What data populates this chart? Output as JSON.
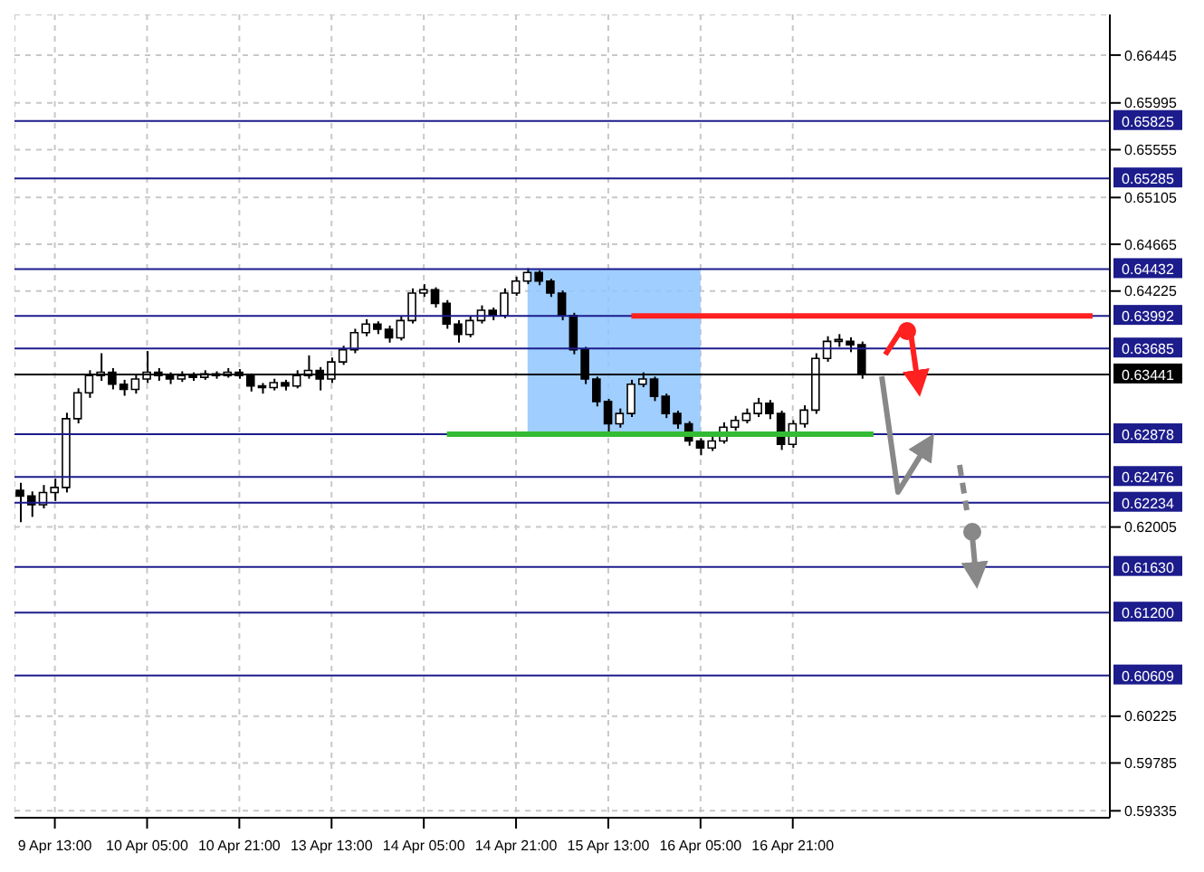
{
  "chart_data": {
    "type": "candlestick",
    "categories": [
      null,
      null,
      null,
      "9 Apr 13:00",
      null,
      null,
      null,
      null,
      null,
      null,
      null,
      "10 Apr 05:00",
      null,
      null,
      null,
      null,
      null,
      null,
      null,
      "10 Apr 21:00",
      null,
      null,
      null,
      null,
      null,
      null,
      null,
      "13 Apr 13:00",
      null,
      null,
      null,
      null,
      null,
      null,
      null,
      "14 Apr 05:00",
      null,
      null,
      null,
      null,
      null,
      null,
      null,
      "14 Apr 21:00",
      null,
      null,
      null,
      null,
      null,
      null,
      null,
      "15 Apr 13:00",
      null,
      null,
      null,
      null,
      null,
      null,
      null,
      "16 Apr 05:00",
      null,
      null,
      null,
      null,
      null,
      null,
      null,
      "16 Apr 21:00",
      null,
      null,
      null,
      null,
      null,
      null,
      null,
      null,
      null,
      null,
      null,
      null,
      null,
      null,
      null,
      null,
      null,
      null,
      null,
      null,
      null,
      null,
      null,
      null,
      null,
      null,
      null
    ],
    "ohlc": [
      [
        0.6235,
        0.6242,
        0.6205,
        0.62296
      ],
      [
        0.62296,
        0.6234,
        0.621,
        0.62215
      ],
      [
        0.62215,
        0.624,
        0.6218,
        0.62329
      ],
      [
        0.62329,
        0.6246,
        0.6225,
        0.62377
      ],
      [
        0.62377,
        0.6308,
        0.6233,
        0.63024
      ],
      [
        0.63024,
        0.6331,
        0.6298,
        0.63267
      ],
      [
        0.63267,
        0.6348,
        0.6322,
        0.63429
      ],
      [
        0.63429,
        0.6364,
        0.6338,
        0.63461
      ],
      [
        0.63461,
        0.635,
        0.633,
        0.63348
      ],
      [
        0.63348,
        0.6339,
        0.6324,
        0.633
      ],
      [
        0.633,
        0.6344,
        0.6326,
        0.63397
      ],
      [
        0.63397,
        0.6366,
        0.6336,
        0.63461
      ],
      [
        0.63461,
        0.635,
        0.6338,
        0.63429
      ],
      [
        0.63429,
        0.6346,
        0.6335,
        0.63397
      ],
      [
        0.63397,
        0.6347,
        0.6337,
        0.63429
      ],
      [
        0.63429,
        0.6346,
        0.6338,
        0.63413
      ],
      [
        0.63413,
        0.6348,
        0.6339,
        0.63445
      ],
      [
        0.63445,
        0.6347,
        0.634,
        0.63429
      ],
      [
        0.63429,
        0.635,
        0.6341,
        0.63461
      ],
      [
        0.63461,
        0.6349,
        0.634,
        0.63429
      ],
      [
        0.63429,
        0.6345,
        0.6328,
        0.63332
      ],
      [
        0.63332,
        0.6336,
        0.6326,
        0.63316
      ],
      [
        0.63316,
        0.634,
        0.6329,
        0.63364
      ],
      [
        0.63364,
        0.6339,
        0.6329,
        0.63332
      ],
      [
        0.63332,
        0.6348,
        0.6331,
        0.63429
      ],
      [
        0.63429,
        0.6362,
        0.634,
        0.63478
      ],
      [
        0.63478,
        0.6351,
        0.6329,
        0.63397
      ],
      [
        0.63397,
        0.636,
        0.6336,
        0.63558
      ],
      [
        0.63558,
        0.6371,
        0.6353,
        0.63672
      ],
      [
        0.63672,
        0.6387,
        0.6364,
        0.63833
      ],
      [
        0.63833,
        0.6396,
        0.638,
        0.63914
      ],
      [
        0.63914,
        0.6394,
        0.6382,
        0.63866
      ],
      [
        0.63866,
        0.639,
        0.6374,
        0.63785
      ],
      [
        0.63785,
        0.6399,
        0.6376,
        0.63947
      ],
      [
        0.63947,
        0.6425,
        0.6392,
        0.64206
      ],
      [
        0.64206,
        0.6429,
        0.6417,
        0.64238
      ],
      [
        0.64238,
        0.6426,
        0.6407,
        0.64109
      ],
      [
        0.64109,
        0.6414,
        0.6387,
        0.63914
      ],
      [
        0.63914,
        0.6395,
        0.6374,
        0.63817
      ],
      [
        0.63817,
        0.6399,
        0.6379,
        0.63947
      ],
      [
        0.63947,
        0.6409,
        0.6392,
        0.64044
      ],
      [
        0.64044,
        0.6407,
        0.6395,
        0.63995
      ],
      [
        0.63995,
        0.6425,
        0.6397,
        0.64206
      ],
      [
        0.64206,
        0.6436,
        0.6418,
        0.64319
      ],
      [
        0.64319,
        0.6444,
        0.6429,
        0.644
      ],
      [
        0.644,
        0.6442,
        0.6428,
        0.64319
      ],
      [
        0.64319,
        0.6434,
        0.6417,
        0.64206
      ],
      [
        0.64206,
        0.6423,
        0.6395,
        0.63995
      ],
      [
        0.63995,
        0.6402,
        0.6363,
        0.63672
      ],
      [
        0.63672,
        0.637,
        0.6335,
        0.63397
      ],
      [
        0.63397,
        0.6342,
        0.6314,
        0.63186
      ],
      [
        0.63186,
        0.6321,
        0.629,
        0.62976
      ],
      [
        0.62976,
        0.6312,
        0.6294,
        0.63073
      ],
      [
        0.63073,
        0.6339,
        0.6304,
        0.63348
      ],
      [
        0.63348,
        0.6346,
        0.6332,
        0.63397
      ],
      [
        0.63397,
        0.6342,
        0.6319,
        0.63235
      ],
      [
        0.63235,
        0.6326,
        0.6303,
        0.63073
      ],
      [
        0.63073,
        0.631,
        0.6293,
        0.62976
      ],
      [
        0.62976,
        0.63,
        0.6277,
        0.62814
      ],
      [
        0.62814,
        0.6284,
        0.6268,
        0.62749
      ],
      [
        0.62749,
        0.6286,
        0.6272,
        0.62814
      ],
      [
        0.62814,
        0.6299,
        0.6279,
        0.62944
      ],
      [
        0.62944,
        0.6305,
        0.6291,
        0.63008
      ],
      [
        0.63008,
        0.6312,
        0.6298,
        0.63073
      ],
      [
        0.63073,
        0.6322,
        0.6304,
        0.6317
      ],
      [
        0.6317,
        0.632,
        0.6302,
        0.63073
      ],
      [
        0.63073,
        0.631,
        0.6273,
        0.62782
      ],
      [
        0.62782,
        0.6301,
        0.6275,
        0.62976
      ],
      [
        0.62976,
        0.6315,
        0.6294,
        0.63105
      ],
      [
        0.63105,
        0.6364,
        0.6307,
        0.63591
      ],
      [
        0.63591,
        0.638,
        0.6356,
        0.63752
      ],
      [
        0.63752,
        0.6382,
        0.637,
        0.63752
      ],
      [
        0.63752,
        0.6379,
        0.6365,
        0.6372
      ],
      [
        0.6372,
        0.6375,
        0.634,
        0.63441
      ],
      null,
      null,
      null,
      null,
      null,
      null,
      null,
      null,
      null,
      null,
      null,
      null,
      null,
      null,
      null,
      null,
      null,
      null,
      null,
      null,
      null
    ],
    "ylim": [
      0.5927,
      0.66827
    ],
    "yticks": [
      0.59335,
      0.59785,
      0.60225,
      0.62005,
      0.64225,
      0.64665,
      0.65105,
      0.65555,
      0.65995,
      0.66445
    ],
    "grid": true,
    "ref_lines": [
      {
        "axis": "y",
        "value": 0.65825,
        "label": "0.65825",
        "color": "#1c1c8c"
      },
      {
        "axis": "y",
        "value": 0.65285,
        "label": "0.65285",
        "color": "#1c1c8c"
      },
      {
        "axis": "y",
        "value": 0.64432,
        "label": "0.64432",
        "color": "#1c1c8c"
      },
      {
        "axis": "y",
        "value": 0.63992,
        "label": "0.63992",
        "color": "#1c1c8c"
      },
      {
        "axis": "y",
        "value": 0.63685,
        "label": "0.63685",
        "color": "#1c1c8c"
      },
      {
        "axis": "y",
        "value": 0.63441,
        "label": "0.63441",
        "color": "#000000"
      },
      {
        "axis": "y",
        "value": 0.62878,
        "label": "0.62878",
        "color": "#1c1c8c"
      },
      {
        "axis": "y",
        "value": 0.62476,
        "label": "0.62476",
        "color": "#1c1c8c"
      },
      {
        "axis": "y",
        "value": 0.62234,
        "label": "0.62234",
        "color": "#1c1c8c"
      },
      {
        "axis": "y",
        "value": 0.6163,
        "label": "0.61630",
        "color": "#1c1c8c"
      },
      {
        "axis": "y",
        "value": 0.612,
        "label": "0.61200",
        "color": "#1c1c8c"
      },
      {
        "axis": "y",
        "value": 0.60609,
        "label": "0.60609",
        "color": "#1c1c8c"
      },
      {
        "axis": "y",
        "value": 0.63992,
        "color": "#ff2020"
      },
      {
        "axis": "y",
        "value": 0.62878,
        "color": "#33bb33"
      }
    ],
    "bands": [
      {
        "axis": "y",
        "from": 0.62878,
        "to": 0.64432,
        "color": "#8ec5ff"
      }
    ]
  }
}
